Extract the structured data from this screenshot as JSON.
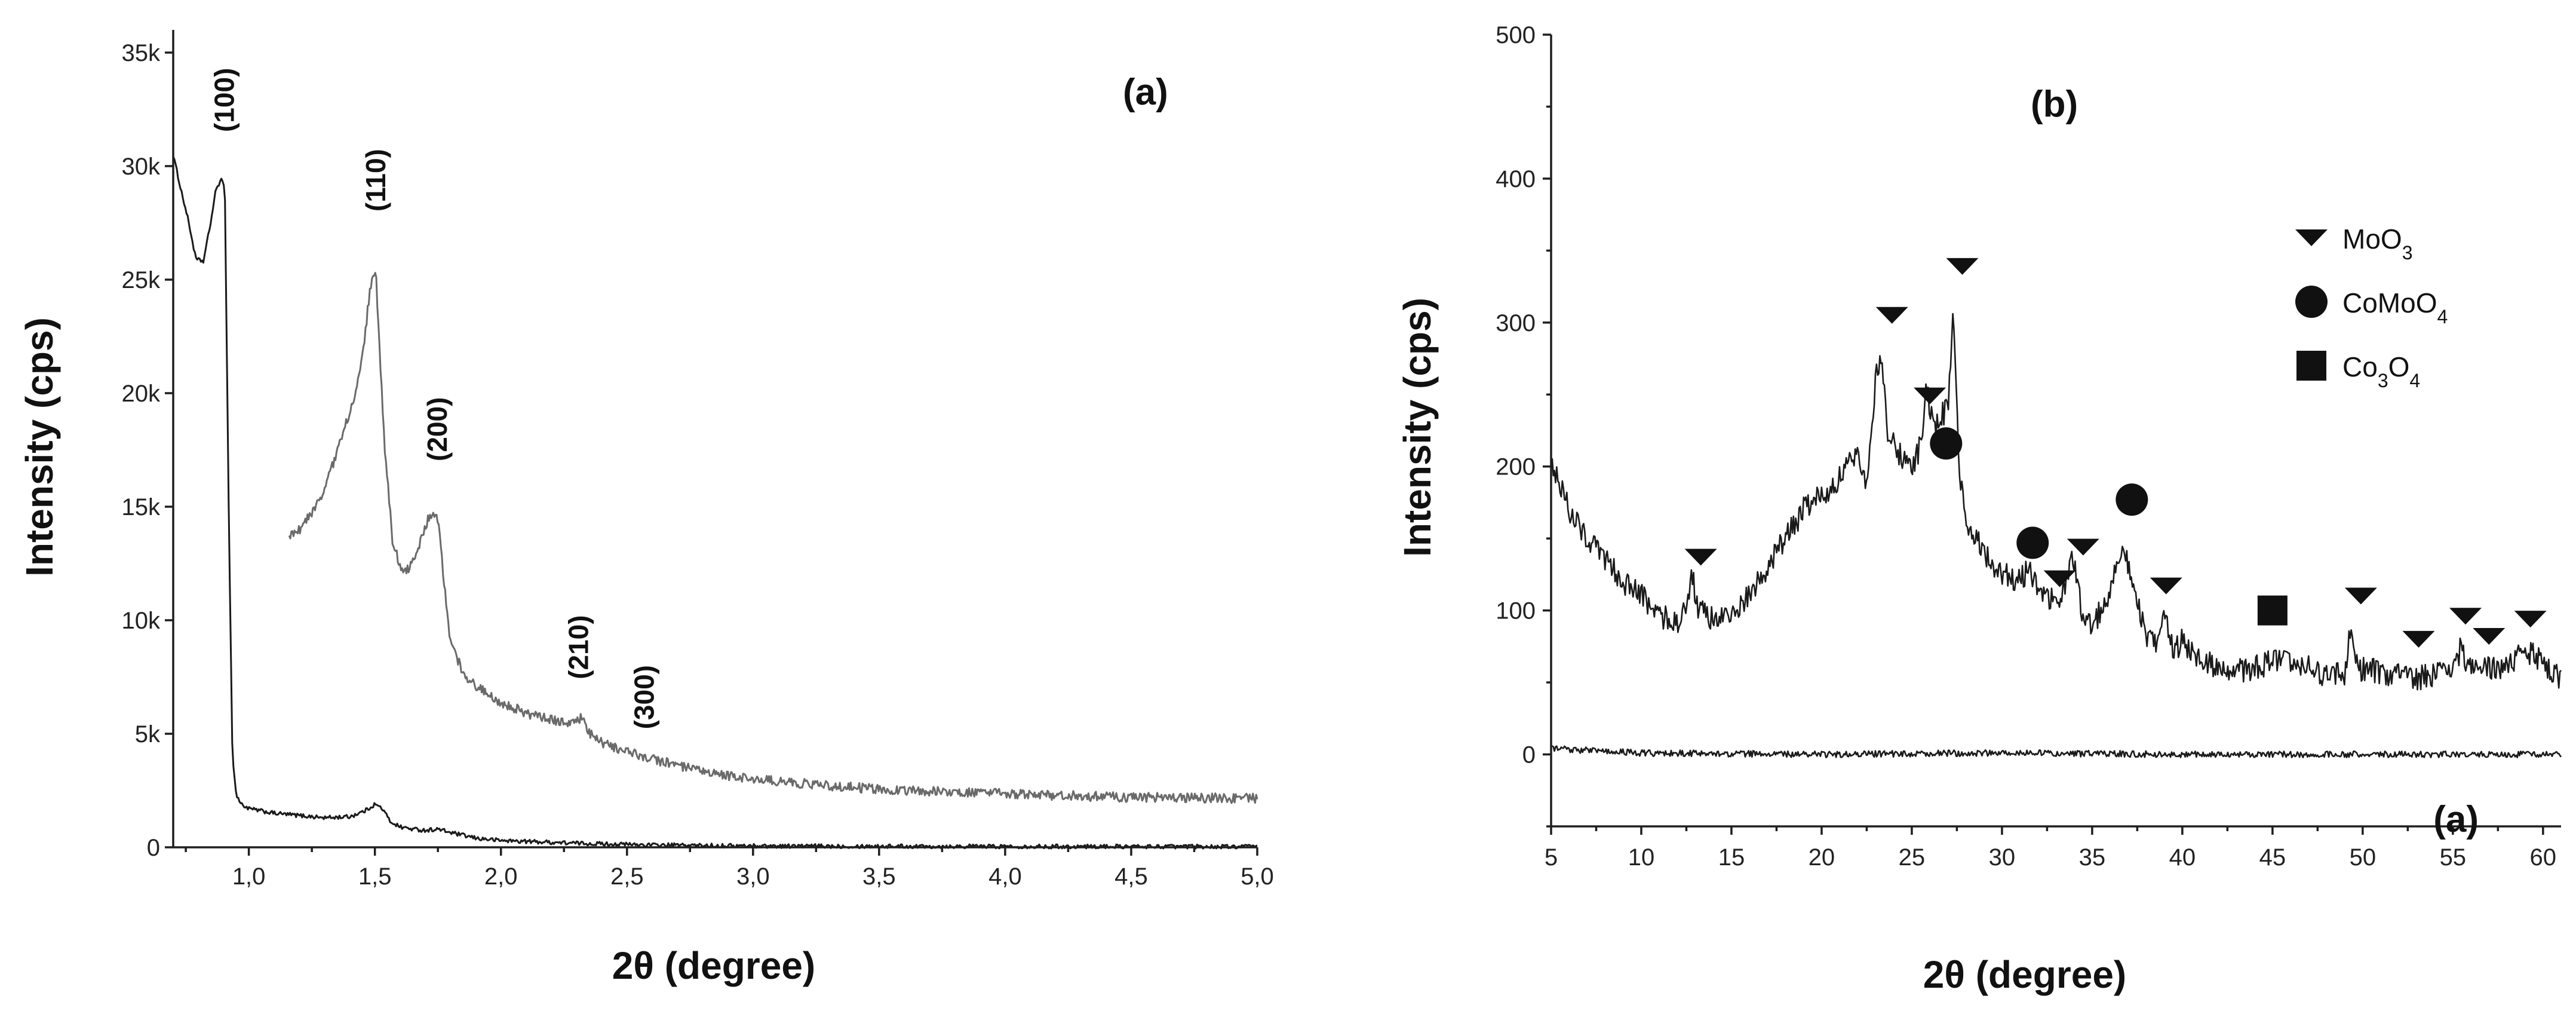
{
  "chart_data": [
    {
      "type": "line",
      "panel_label": "(a)",
      "xlabel": "2θ (degree)",
      "ylabel": "Intensity (cps)",
      "xlim": [
        0.7,
        5.0
      ],
      "ylim": [
        0,
        36000
      ],
      "x_ticks": [
        {
          "value": 1.0,
          "label": "1,0"
        },
        {
          "value": 1.5,
          "label": "1,5"
        },
        {
          "value": 2.0,
          "label": "2,0"
        },
        {
          "value": 2.5,
          "label": "2,5"
        },
        {
          "value": 3.0,
          "label": "3,0"
        },
        {
          "value": 3.5,
          "label": "3,5"
        },
        {
          "value": 4.0,
          "label": "4,0"
        },
        {
          "value": 4.5,
          "label": "4,5"
        },
        {
          "value": 5.0,
          "label": "5,0"
        }
      ],
      "y_ticks": [
        {
          "value": 0,
          "label": "0"
        },
        {
          "value": 5000,
          "label": "5k"
        },
        {
          "value": 10000,
          "label": "10k"
        },
        {
          "value": 15000,
          "label": "15k"
        },
        {
          "value": 20000,
          "label": "20k"
        },
        {
          "value": 25000,
          "label": "25k"
        },
        {
          "value": 30000,
          "label": "30k"
        },
        {
          "value": 35000,
          "label": "35k"
        }
      ],
      "grid": false,
      "series": [
        {
          "color": "#1a1a1a",
          "x": [
            0.7,
            0.73,
            0.76,
            0.79,
            0.82,
            0.85,
            0.87,
            0.89,
            0.905,
            0.92,
            0.935,
            0.95,
            0.97,
            1.0,
            1.1,
            1.2,
            1.3,
            1.4,
            1.46,
            1.5,
            1.53,
            1.56,
            1.6,
            1.65,
            1.7,
            1.75,
            1.8,
            1.9,
            2.0,
            2.3,
            2.6,
            3.0,
            4.0,
            5.0
          ],
          "y": [
            30500,
            29000,
            27600,
            25900,
            25800,
            27600,
            29000,
            29400,
            29000,
            15000,
            4000,
            2300,
            1900,
            1700,
            1500,
            1400,
            1300,
            1350,
            1600,
            1900,
            1700,
            1150,
            900,
            800,
            750,
            800,
            650,
            400,
            300,
            180,
            100,
            60,
            40,
            30
          ]
        },
        {
          "color": "#6a6a6a",
          "x": [
            1.16,
            1.2,
            1.25,
            1.3,
            1.35,
            1.4,
            1.43,
            1.45,
            1.47,
            1.49,
            1.505,
            1.52,
            1.54,
            1.57,
            1.6,
            1.63,
            1.66,
            1.69,
            1.72,
            1.75,
            1.78,
            1.8,
            1.85,
            1.9,
            2.0,
            2.1,
            2.2,
            2.28,
            2.32,
            2.35,
            2.4,
            2.5,
            2.6,
            2.7,
            2.8,
            3.0,
            3.2,
            3.5,
            4.0,
            4.5,
            5.0
          ],
          "y": [
            13700,
            14000,
            14700,
            15800,
            17400,
            19200,
            20300,
            21500,
            23500,
            25300,
            25100,
            21500,
            17500,
            13500,
            12400,
            12200,
            12700,
            13800,
            14700,
            14500,
            11000,
            9000,
            7700,
            7100,
            6400,
            5900,
            5600,
            5500,
            5700,
            5000,
            4600,
            4200,
            3900,
            3600,
            3300,
            3000,
            2800,
            2550,
            2350,
            2200,
            2150
          ]
        }
      ],
      "annotations": [
        {
          "label": "(100)",
          "x": 0.905,
          "y": 31500
        },
        {
          "label": "(110)",
          "x": 1.505,
          "y": 28000
        },
        {
          "label": "(200)",
          "x": 1.75,
          "y": 17000
        },
        {
          "label": "(210)",
          "x": 2.31,
          "y": 7400
        },
        {
          "label": "(300)",
          "x": 2.57,
          "y": 5200
        }
      ]
    },
    {
      "type": "line",
      "panel_label": "(b)",
      "xlabel": "2θ (degree)",
      "ylabel": "Intensity (cps)",
      "xlim": [
        5,
        61
      ],
      "ylim": [
        -50,
        500
      ],
      "x_ticks": [
        5,
        10,
        15,
        20,
        25,
        30,
        35,
        40,
        45,
        50,
        55,
        60
      ],
      "y_ticks": [
        0,
        100,
        200,
        300,
        400,
        500
      ],
      "grid": false,
      "series_labels": [
        {
          "label": "(a)",
          "x": 58,
          "y": -30
        }
      ],
      "series": [
        {
          "color": "#1a1a1a",
          "x": [
            5,
            6,
            7,
            8,
            9,
            10,
            11,
            12,
            12.5,
            12.8,
            13.2,
            14,
            15,
            16,
            17,
            18,
            19,
            20,
            21,
            22,
            22.5,
            23,
            23.3,
            23.7,
            24.5,
            25,
            25.5,
            25.8,
            26.2,
            26.6,
            27,
            27.3,
            27.6,
            28,
            29,
            30,
            31,
            31.5,
            32,
            33,
            33.5,
            33.9,
            34.5,
            35,
            35.5,
            36,
            36.5,
            36.8,
            37.2,
            38,
            38.5,
            39,
            39.5,
            40,
            41,
            42,
            43,
            44,
            45,
            46,
            47,
            48,
            49,
            49.3,
            49.8,
            51,
            52,
            53,
            54,
            55,
            55.4,
            56,
            57,
            58,
            59,
            60,
            61
          ],
          "y": [
            205,
            170,
            150,
            135,
            120,
            110,
            97,
            92,
            100,
            125,
            100,
            93,
            97,
            110,
            130,
            150,
            170,
            180,
            192,
            210,
            190,
            260,
            280,
            220,
            205,
            200,
            215,
            255,
            225,
            235,
            240,
            310,
            200,
            160,
            140,
            125,
            120,
            130,
            115,
            105,
            115,
            140,
            95,
            90,
            100,
            115,
            140,
            145,
            120,
            80,
            75,
            95,
            70,
            80,
            65,
            60,
            58,
            60,
            65,
            62,
            60,
            55,
            55,
            85,
            60,
            57,
            56,
            53,
            55,
            58,
            72,
            58,
            60,
            60,
            72,
            65,
            52
          ]
        },
        {
          "color": "#1a1a1a",
          "x": [
            5,
            10,
            20,
            30,
            40,
            50,
            61
          ],
          "y": [
            4,
            1,
            0,
            1,
            0,
            0,
            0
          ]
        }
      ],
      "phase_markers": [
        {
          "phase": "MoO3",
          "shape": "triangle-down",
          "positions": [
            [
              13.3,
              137
            ],
            [
              23.9,
              305
            ],
            [
              26.0,
              249
            ],
            [
              27.8,
              339
            ],
            [
              33.2,
              122
            ],
            [
              34.5,
              144
            ],
            [
              39.1,
              117
            ],
            [
              49.9,
              110
            ],
            [
              53.1,
              80
            ],
            [
              55.7,
              96
            ],
            [
              57.0,
              82
            ],
            [
              59.3,
              94
            ]
          ]
        },
        {
          "phase": "CoMoO4",
          "shape": "circle",
          "positions": [
            [
              26.9,
              216
            ],
            [
              31.7,
              147
            ],
            [
              37.2,
              177
            ]
          ]
        },
        {
          "phase": "Co3O4",
          "shape": "square",
          "positions": [
            [
              45.0,
              100
            ]
          ]
        }
      ],
      "legend": {
        "placement": "top-right",
        "entries": [
          {
            "shape": "triangle-down",
            "base": "MoO",
            "sub": "3",
            "rest": ""
          },
          {
            "shape": "circle",
            "base": "CoMoO",
            "sub": "4",
            "rest": ""
          },
          {
            "shape": "square",
            "base": "Co",
            "sub": "3",
            "rest": "O4"
          }
        ]
      }
    }
  ]
}
